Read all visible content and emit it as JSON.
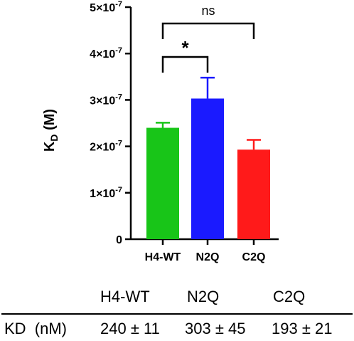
{
  "chart_data": {
    "type": "bar",
    "categories": [
      "H4-WT",
      "N2Q",
      "C2Q"
    ],
    "values": [
      2.4e-07,
      3.03e-07,
      1.93e-07
    ],
    "errors": [
      1.1e-08,
      4.5e-08,
      2.1e-08
    ],
    "colors": [
      "#18c518",
      "#1a1aff",
      "#ff1a1a"
    ],
    "ylabel_main": "K",
    "ylabel_sub": "D",
    "ylabel_unit": " (M)",
    "ylim": [
      0,
      5e-07
    ],
    "yticks": [
      0,
      1e-07,
      2e-07,
      3e-07,
      4e-07,
      5e-07
    ],
    "ytick_labels": [
      {
        "mantissa": "0",
        "exp": ""
      },
      {
        "mantissa": "1×10",
        "exp": "-7"
      },
      {
        "mantissa": "2×10",
        "exp": "-7"
      },
      {
        "mantissa": "3×10",
        "exp": "-7"
      },
      {
        "mantissa": "4×10",
        "exp": "-7"
      },
      {
        "mantissa": "5×10",
        "exp": "-7"
      }
    ],
    "significance": [
      {
        "from": 0,
        "to": 1,
        "label": "*"
      },
      {
        "from": 0,
        "to": 2,
        "label": "ns"
      }
    ]
  },
  "table": {
    "columns": [
      "H4-WT",
      "N2Q",
      "C2Q"
    ],
    "row_label": "KD  (nM)",
    "row_values": [
      "240 ± 11",
      "303 ± 45",
      "193 ± 21"
    ]
  }
}
